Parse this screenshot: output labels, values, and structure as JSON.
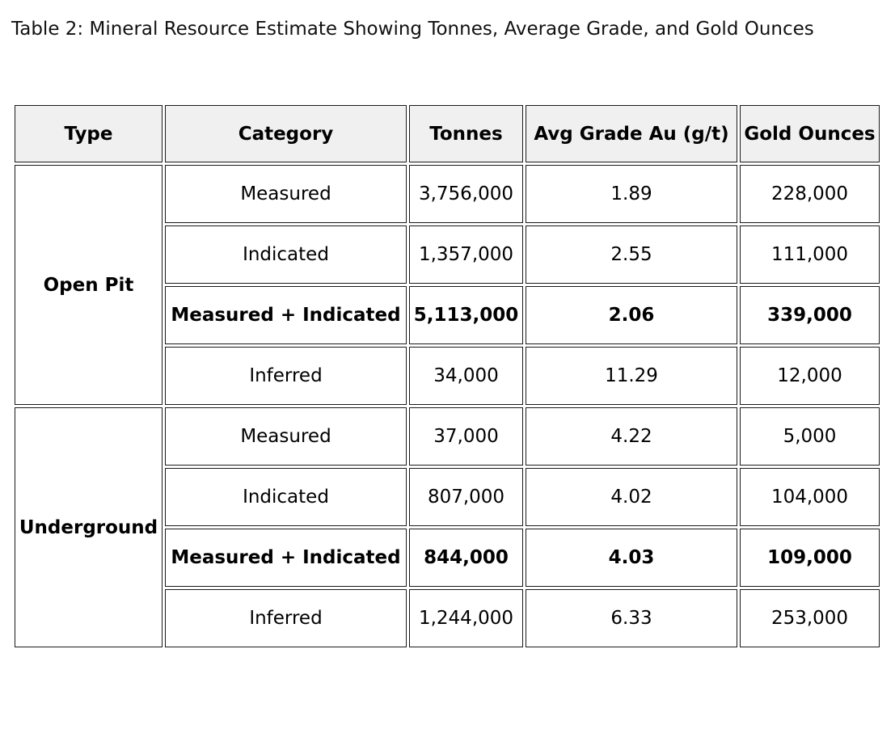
{
  "title": "Table 2: Mineral Resource Estimate Showing Tonnes, Average Grade, and Gold Ounces",
  "chart_data": {
    "type": "table",
    "title": "Table 2: Mineral Resource Estimate Showing Tonnes, Average Grade, and Gold Ounces",
    "columns": [
      "Type",
      "Category",
      "Tonnes",
      "Avg Grade Au (g/t)",
      "Gold Ounces"
    ],
    "groups": [
      {
        "type": "Open Pit",
        "rows": [
          {
            "category": "Measured",
            "tonnes": "3,756,000",
            "avg_grade_au_gpt": "1.89",
            "gold_ounces": "228,000",
            "emphasis": false
          },
          {
            "category": "Indicated",
            "tonnes": "1,357,000",
            "avg_grade_au_gpt": "2.55",
            "gold_ounces": "111,000",
            "emphasis": false
          },
          {
            "category": "Measured + Indicated",
            "tonnes": "5,113,000",
            "avg_grade_au_gpt": "2.06",
            "gold_ounces": "339,000",
            "emphasis": true
          },
          {
            "category": "Inferred",
            "tonnes": "34,000",
            "avg_grade_au_gpt": "11.29",
            "gold_ounces": "12,000",
            "emphasis": false
          }
        ]
      },
      {
        "type": "Underground",
        "rows": [
          {
            "category": "Measured",
            "tonnes": "37,000",
            "avg_grade_au_gpt": "4.22",
            "gold_ounces": "5,000",
            "emphasis": false
          },
          {
            "category": "Indicated",
            "tonnes": "807,000",
            "avg_grade_au_gpt": "4.02",
            "gold_ounces": "104,000",
            "emphasis": false
          },
          {
            "category": "Measured + Indicated",
            "tonnes": "844,000",
            "avg_grade_au_gpt": "4.03",
            "gold_ounces": "109,000",
            "emphasis": true
          },
          {
            "category": "Inferred",
            "tonnes": "1,244,000",
            "avg_grade_au_gpt": "6.33",
            "gold_ounces": "253,000",
            "emphasis": false
          }
        ]
      }
    ],
    "layout": {
      "grid": true,
      "header_fill": "#f0f0f0",
      "cell_fill": "#ffffff"
    }
  },
  "colors": {
    "header_bg": "#f0f0f0",
    "border": "#1a1a1a",
    "text": "#000000",
    "background": "#ffffff"
  }
}
